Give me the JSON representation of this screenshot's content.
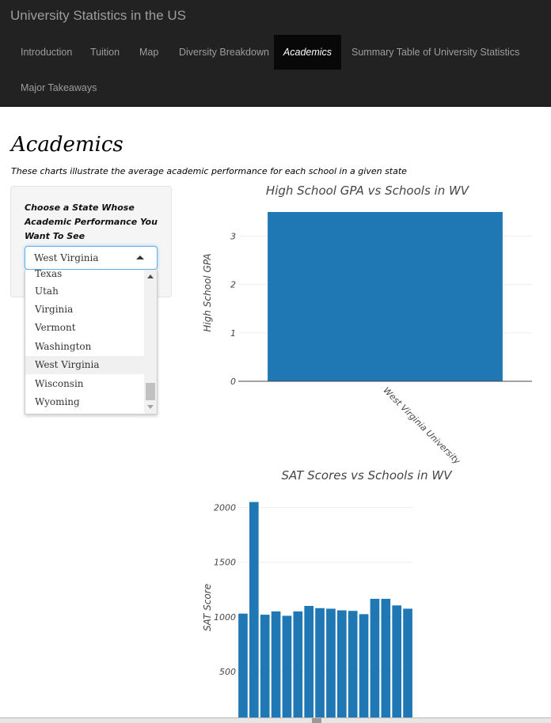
{
  "nav": {
    "brand": "University Statistics in the US",
    "tabs": [
      {
        "label": "Introduction",
        "active": false
      },
      {
        "label": "Tuition",
        "active": false
      },
      {
        "label": "Map",
        "active": false
      },
      {
        "label": "Diversity Breakdown",
        "active": false
      },
      {
        "label": "Academics",
        "active": true
      },
      {
        "label": "Summary Table of University Statistics",
        "active": false
      },
      {
        "label": "Major Takeaways",
        "active": false
      }
    ]
  },
  "page": {
    "title": "Academics",
    "subtitle": "These charts illustrate the average academic performance for each school in a given state"
  },
  "control": {
    "label": "Choose a State Whose Academic Performance You Want To See",
    "selected": "West Virginia",
    "options": [
      "Texas",
      "Utah",
      "Virginia",
      "Vermont",
      "Washington",
      "West Virginia",
      "Wisconsin",
      "Wyoming"
    ]
  },
  "chart_data": [
    {
      "type": "bar",
      "title": "High School GPA vs Schools in WV",
      "xlabel": "",
      "ylabel": "High School GPA",
      "categories": [
        "West Virginia University"
      ],
      "values": [
        3.5
      ],
      "ylim": [
        0,
        3.5
      ],
      "yticks": [
        0,
        1,
        2,
        3
      ],
      "color": "#1f77b4",
      "grid": true
    },
    {
      "type": "bar",
      "title": "SAT Scores vs Schools in WV",
      "xlabel": "",
      "ylabel": "SAT Score",
      "values": [
        1030,
        2050,
        1020,
        1050,
        1010,
        1050,
        1100,
        1080,
        1075,
        1060,
        1055,
        1025,
        1165,
        1165,
        1105,
        1075
      ],
      "yticks": [
        500,
        1000,
        1500,
        2000
      ],
      "color": "#1f77b4",
      "grid": true
    }
  ]
}
